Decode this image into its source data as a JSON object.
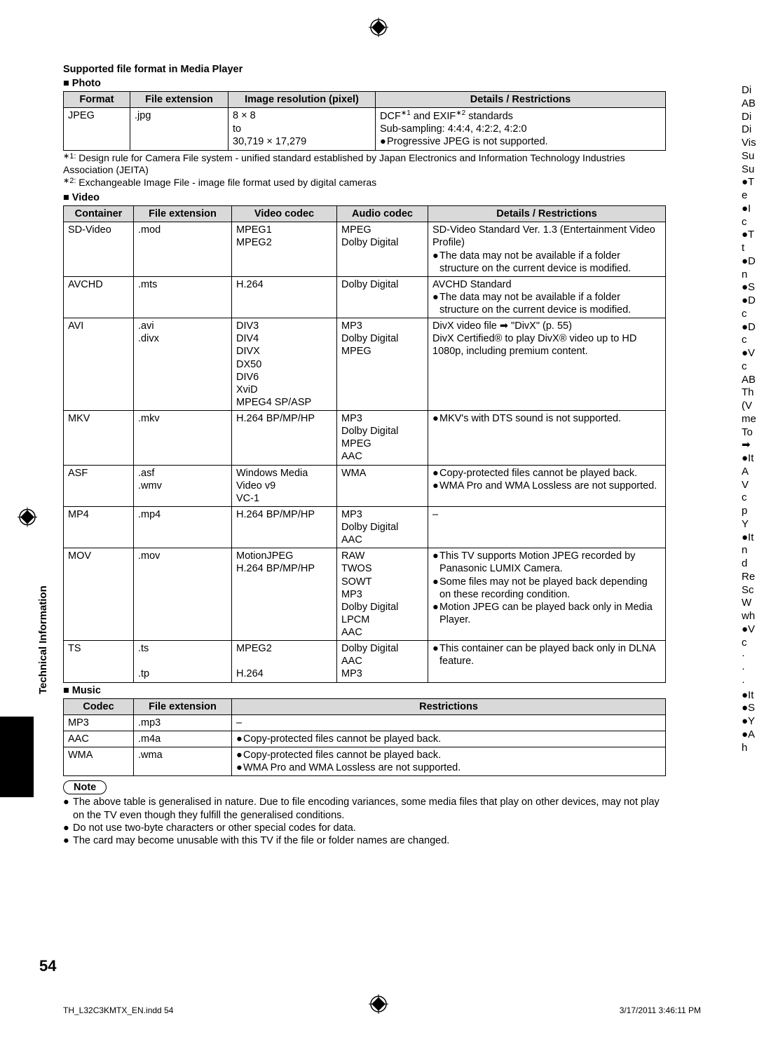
{
  "header": {
    "title": "Supported file format in Media Player",
    "photo_label": "■ Photo",
    "video_label": "■ Video",
    "music_label": "■ Music"
  },
  "photo_table": {
    "headers": [
      "Format",
      "File extension",
      "Image resolution (pixel)",
      "Details / Restrictions"
    ],
    "row": {
      "format": "JPEG",
      "ext": ".jpg",
      "res": "8 × 8\nto\n30,719 × 17,279",
      "details_line1": "DCF∗1 and EXIF∗2 standards",
      "details_line2": "Sub-sampling: 4:4:4, 4:2:2, 4:2:0",
      "details_bullet": "Progressive JPEG is not supported."
    }
  },
  "photo_notes": {
    "n1": "Design rule for Camera File system - unified standard established by Japan Electronics and Information Technology Industries Association (JEITA)",
    "n2": "Exchangeable Image File - image file format used by digital cameras"
  },
  "video_table": {
    "headers": [
      "Container",
      "File extension",
      "Video codec",
      "Audio codec",
      "Details / Restrictions"
    ],
    "rows": [
      {
        "container": "SD-Video",
        "ext": ".mod",
        "vcodec": "MPEG1\nMPEG2",
        "acodec": "MPEG\nDolby Digital",
        "details_plain": "SD-Video Standard Ver. 1.3 (Entertainment Video Profile)",
        "details_bullets": [
          "The data may not be available if a folder structure on the current device is modified."
        ]
      },
      {
        "container": "AVCHD",
        "ext": ".mts",
        "vcodec": "H.264",
        "acodec": "Dolby Digital",
        "details_plain": "AVCHD Standard",
        "details_bullets": [
          "The data may not be available if a folder structure on the current device is modified."
        ]
      },
      {
        "container": "AVI",
        "ext": ".avi\n.divx",
        "vcodec": "DIV3\nDIV4\nDIVX\nDX50\nDIV6\nXviD\nMPEG4 SP/ASP",
        "acodec": "MP3\nDolby Digital\nMPEG",
        "details_plain": "DivX video file ➡ \"DivX\" (p. 55)\nDivX Certified® to play DivX® video up to HD 1080p, including premium content."
      },
      {
        "container": "MKV",
        "ext": ".mkv",
        "vcodec": "H.264 BP/MP/HP",
        "acodec": "MP3\nDolby Digital\nMPEG\nAAC",
        "details_bullets": [
          "MKV's with DTS sound is not supported."
        ]
      },
      {
        "container": "ASF",
        "ext": ".asf\n.wmv",
        "vcodec": "Windows Media Video v9\nVC-1",
        "acodec": "WMA",
        "details_bullets": [
          "Copy-protected files cannot be played back.",
          "WMA Pro and WMA Lossless are not supported."
        ]
      },
      {
        "container": "MP4",
        "ext": ".mp4",
        "vcodec": "H.264 BP/MP/HP",
        "acodec": "MP3\nDolby Digital\nAAC",
        "details_plain": "–"
      },
      {
        "container": "MOV",
        "ext": ".mov",
        "vcodec": "MotionJPEG\nH.264 BP/MP/HP",
        "acodec": "RAW\nTWOS\nSOWT\nMP3\nDolby Digital\nLPCM\nAAC",
        "details_bullets": [
          "This TV supports Motion JPEG recorded by Panasonic LUMIX Camera.",
          "Some files may not be played back depending on these recording condition.",
          "Motion JPEG can be played back only in Media Player."
        ]
      },
      {
        "container": "TS",
        "ext": ".ts\n\n.tp",
        "vcodec": "MPEG2\n\nH.264",
        "acodec": "Dolby Digital\nAAC\nMP3",
        "details_bullets": [
          "This container can be played back only in DLNA feature."
        ]
      }
    ]
  },
  "music_table": {
    "headers": [
      "Codec",
      "File extension",
      "Restrictions"
    ],
    "rows": [
      {
        "codec": "MP3",
        "ext": ".mp3",
        "restr_plain": "–"
      },
      {
        "codec": "AAC",
        "ext": ".m4a",
        "restr_bullets": [
          "Copy-protected files cannot be played back."
        ]
      },
      {
        "codec": "WMA",
        "ext": ".wma",
        "restr_bullets": [
          "Copy-protected files cannot be played back.",
          "WMA Pro and WMA Lossless are not supported."
        ]
      }
    ]
  },
  "note_label": "Note",
  "foot_notes": [
    "The above table is generalised in nature. Due to file encoding variances, some media files that play on other devices, may not play on the TV even though they fulfill the generalised conditions.",
    "Do not use two-byte characters or other special codes for data.",
    "The card may become unusable with this TV if the file or folder names are changed."
  ],
  "side_label": "Technical Information",
  "page_number": "54",
  "footer_left": "TH_L32C3KMTX_EN.indd   54",
  "footer_right": "3/17/2011   3:46:11 PM",
  "right_overflow": [
    "Di",
    "AB",
    "Di",
    "Di",
    "Vis",
    "Su",
    "Su",
    "●T",
    "e",
    "●I",
    "c",
    "●T",
    "t",
    "●D",
    "n",
    "●S",
    "",
    "●D",
    "c",
    "●D",
    "c",
    "●V",
    "c",
    "",
    "AB",
    "Th",
    "(V",
    "me",
    "To",
    "➡",
    "●It",
    "A",
    "V",
    "c",
    "p",
    "Y",
    "●It",
    "n",
    "d",
    "Re",
    "Sc",
    "W",
    "wh",
    "●V",
    "c",
    "·",
    "·",
    "·",
    "",
    "",
    "●It",
    "●S",
    "●Y",
    "",
    "●A",
    "h"
  ]
}
